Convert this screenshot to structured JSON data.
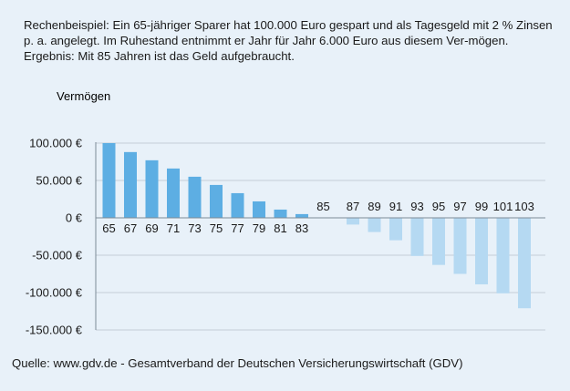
{
  "intro_text": "Rechenbeispiel: Ein 65-jähriger Sparer hat 100.000 Euro gespart und als Tagesgeld mit 2 % Zinsen p. a. angelegt. Im Ruhestand entnimmt er Jahr für Jahr 6.000 Euro aus diesem Ver-mögen. Ergebnis: Mit 85 Jahren ist das Geld aufgebraucht.",
  "source_text": "Quelle: www.gdv.de - Gesamtverband der Deutschen Versicherungswirtschaft (GDV)",
  "chart_data": {
    "type": "bar",
    "ylabel": "Vermögen",
    "ylim": [
      -150000,
      100000
    ],
    "yticks": [
      100000,
      50000,
      0,
      -50000,
      -100000,
      -150000
    ],
    "ytick_labels": [
      "100.000 €",
      "50.000 €",
      "0 €",
      "-50.000 €",
      "-100.000 €",
      "-150.000 €"
    ],
    "grid": true,
    "categories": [
      "65",
      "67",
      "69",
      "71",
      "73",
      "75",
      "77",
      "79",
      "81",
      "83",
      "85",
      "87",
      "89",
      "91",
      "93",
      "95",
      "97",
      "99",
      "101",
      "103"
    ],
    "values": [
      100000,
      88000,
      77000,
      66000,
      55000,
      44000,
      33000,
      22000,
      11000,
      5000,
      0,
      -9000,
      -19000,
      -30000,
      -51000,
      -63000,
      -75000,
      -89000,
      -101000,
      -121000
    ],
    "colors": {
      "positive": "#5daee3",
      "negative": "#b5d9f2",
      "grid": "#c3cdd6",
      "axis": "#7d8a96",
      "text": "#1a1a1a"
    }
  }
}
